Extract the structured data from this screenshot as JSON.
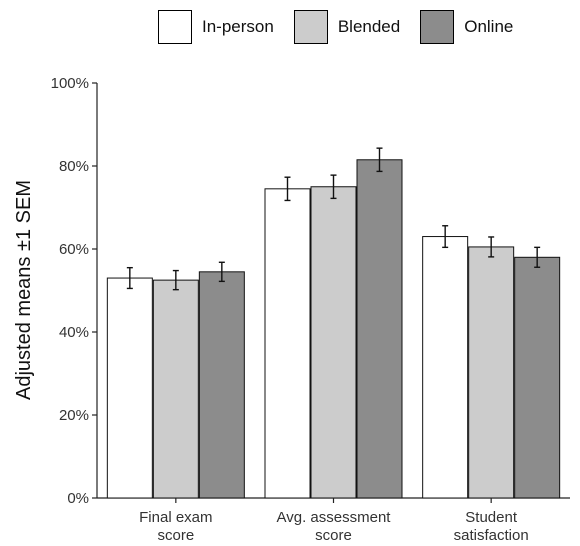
{
  "chart_data": {
    "type": "bar",
    "categories": [
      [
        "Final exam",
        "score"
      ],
      [
        "Avg. assessment",
        "score"
      ],
      [
        "Student",
        "satisfaction"
      ]
    ],
    "series": [
      {
        "name": "In-person",
        "color": "#ffffff",
        "values": [
          53,
          74.5,
          63
        ],
        "sem": [
          2.5,
          2.8,
          2.6
        ]
      },
      {
        "name": "Blended",
        "color": "#cccccc",
        "values": [
          52.5,
          75,
          60.5
        ],
        "sem": [
          2.3,
          2.8,
          2.4
        ]
      },
      {
        "name": "Online",
        "color": "#8c8c8c",
        "values": [
          54.5,
          81.5,
          58
        ],
        "sem": [
          2.3,
          2.8,
          2.4
        ]
      }
    ],
    "ylabel": "Adjusted means ±1 SEM",
    "ylim": [
      0,
      100
    ],
    "yticks": [
      "0%",
      "20%",
      "40%",
      "60%",
      "80%",
      "100%"
    ],
    "legend_position": "top",
    "grid": false
  }
}
